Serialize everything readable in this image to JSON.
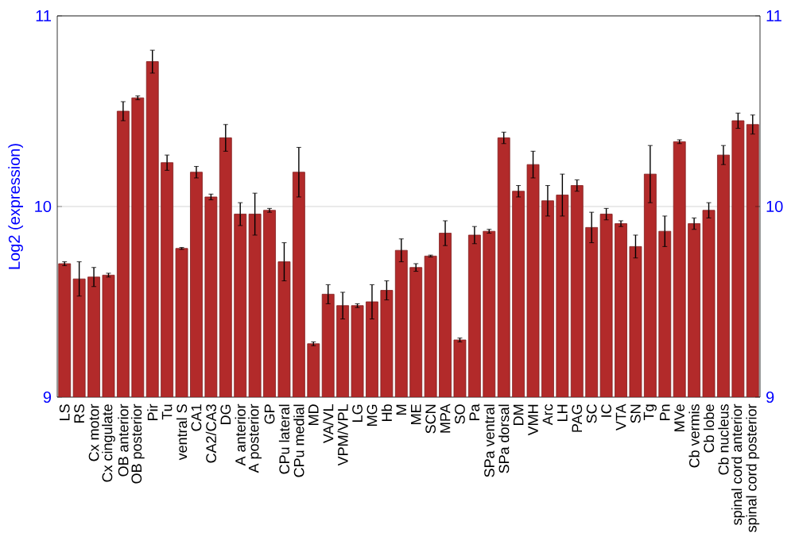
{
  "chart_data": {
    "type": "bar",
    "ylabel": "Log2 (expression)",
    "categories": [
      "LS",
      "RS",
      "Cx motor",
      "Cx cingulate",
      "OB anterior",
      "OB posterior",
      "Pir",
      "Tu",
      "ventral S",
      "CA1",
      "CA2/CA3",
      "DG",
      "A anterior",
      "A posterior",
      "GP",
      "CPu lateral",
      "CPu medial",
      "MD",
      "VA/VL",
      "VPM/VPL",
      "LG",
      "MG",
      "Hb",
      "M",
      "ME",
      "SCN",
      "MPA",
      "SO",
      "Pa",
      "SPa ventral",
      "SPa dorsal",
      "DM",
      "VMH",
      "Arc",
      "LH",
      "PAG",
      "SC",
      "IC",
      "VTA",
      "SN",
      "Tg",
      "Pn",
      "MVe",
      "Cb vermis",
      "Cb lobe",
      "Cb nucleus",
      "spinal cord anterior",
      "spinal cord posterior"
    ],
    "values": [
      9.7,
      9.62,
      9.63,
      9.64,
      10.5,
      10.57,
      10.76,
      10.23,
      9.78,
      10.18,
      10.05,
      10.36,
      9.96,
      9.96,
      9.98,
      9.71,
      10.18,
      9.28,
      9.54,
      9.48,
      9.48,
      9.5,
      9.56,
      9.77,
      9.68,
      9.74,
      9.86,
      9.3,
      9.85,
      9.87,
      10.36,
      10.08,
      10.22,
      10.03,
      10.06,
      10.11,
      9.89,
      9.96,
      9.91,
      9.79,
      10.17,
      9.87,
      10.34,
      9.91,
      9.98,
      10.27,
      10.45,
      10.43
    ],
    "errors": [
      0.01,
      0.09,
      0.05,
      0.01,
      0.05,
      0.01,
      0.06,
      0.04,
      0.005,
      0.03,
      0.015,
      0.07,
      0.06,
      0.11,
      0.01,
      0.1,
      0.13,
      0.01,
      0.05,
      0.07,
      0.01,
      0.09,
      0.05,
      0.06,
      0.02,
      0.005,
      0.065,
      0.01,
      0.045,
      0.01,
      0.03,
      0.03,
      0.07,
      0.08,
      0.11,
      0.03,
      0.08,
      0.03,
      0.015,
      0.06,
      0.15,
      0.08,
      0.01,
      0.03,
      0.04,
      0.05,
      0.04,
      0.05
    ],
    "color": "#b22a2a",
    "ylim": [
      9,
      11
    ],
    "yticks": [
      9,
      10,
      11
    ],
    "y2lim": [
      9,
      11
    ],
    "y2ticks": [
      9,
      10,
      11
    ],
    "grid": "y"
  }
}
